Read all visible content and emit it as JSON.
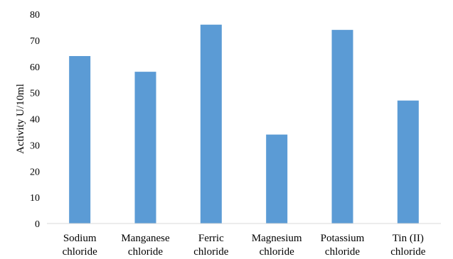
{
  "chart_data": {
    "type": "bar",
    "title": "",
    "xlabel": "",
    "ylabel": "Activity U/10ml",
    "ylim": [
      0,
      80
    ],
    "y_ticks": [
      0,
      10,
      20,
      30,
      40,
      50,
      60,
      70,
      80
    ],
    "grid": false,
    "legend": "none",
    "categories": [
      [
        "Sodium",
        "chloride"
      ],
      [
        "Manganese",
        "chloride"
      ],
      [
        "Ferric",
        "chloride"
      ],
      [
        "Magnesium",
        "chloride"
      ],
      [
        "Potassium",
        "chloride"
      ],
      [
        "Tin (II)",
        "chloride"
      ]
    ],
    "values": [
      64,
      58,
      76,
      34,
      74,
      47
    ],
    "bar_color": "#5B9BD5",
    "axis_color": "#D9D9D9"
  }
}
